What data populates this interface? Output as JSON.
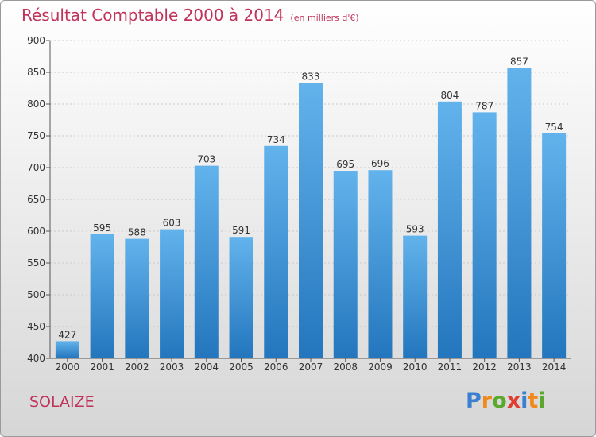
{
  "chart_data": {
    "type": "bar",
    "title": "Résultat Comptable 2000 à 2014",
    "subtitle": "(en milliers d'€)",
    "xlabel": "",
    "ylabel": "",
    "categories": [
      "2000",
      "2001",
      "2002",
      "2003",
      "2004",
      "2005",
      "2006",
      "2007",
      "2008",
      "2009",
      "2010",
      "2011",
      "2012",
      "2013",
      "2014"
    ],
    "values": [
      427,
      595,
      588,
      603,
      703,
      591,
      734,
      833,
      695,
      696,
      593,
      804,
      787,
      857,
      754
    ],
    "ylim": [
      400,
      900
    ],
    "yticks": [
      400,
      450,
      500,
      550,
      600,
      650,
      700,
      750,
      800,
      850,
      900
    ],
    "grid": true,
    "bar_color": "#3d95d6"
  },
  "footer": {
    "city": "SOLAIZE",
    "brand_letters": [
      "P",
      "r",
      "o",
      "x",
      "i",
      "t",
      "i"
    ],
    "brand_colors": [
      "#3a7fd0",
      "#f08a1c",
      "#5aa82d",
      "#e03c31",
      "#3a7fd0",
      "#f08a1c",
      "#5aa82d"
    ]
  }
}
